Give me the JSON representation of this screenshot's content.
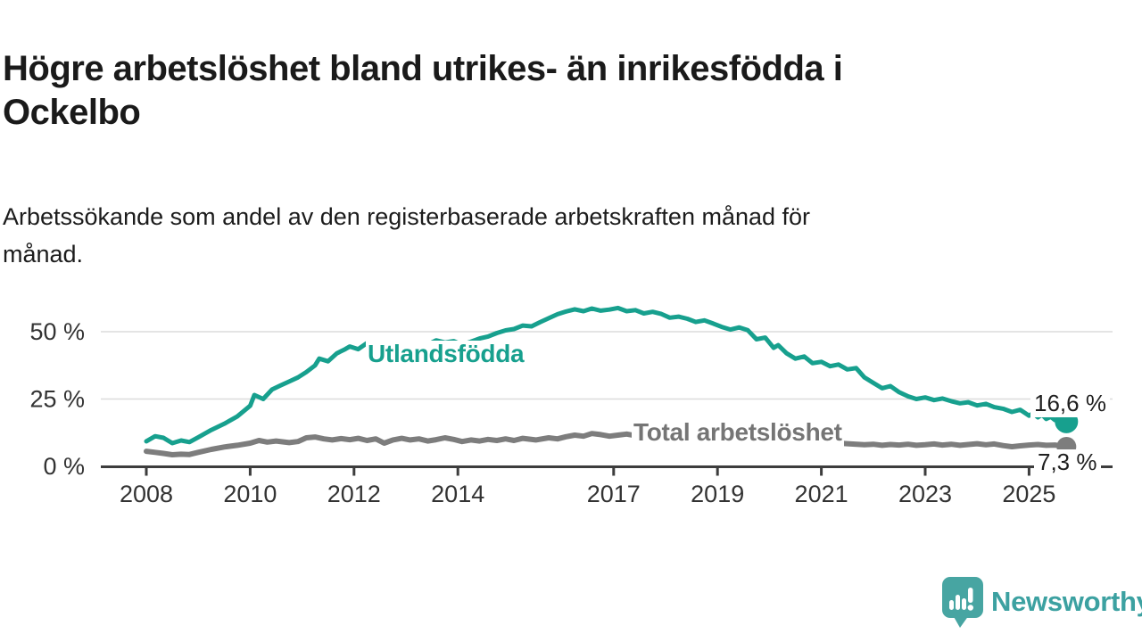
{
  "header": {
    "title": "Högre arbetslöshet bland utrikes- än inrikesfödda i Ockelbo",
    "title_lines": [
      "Högre arbetslöshet bland utrikes- än inrikesfödda i",
      "Ockelbo"
    ],
    "subtitle": "Arbetssökande som andel av den registerbaserade arbetskraften månad för månad.",
    "subtitle_lines": [
      "Arbetssökande som andel av den registerbaserade arbetskraften månad för",
      "månad."
    ]
  },
  "colors": {
    "foreign_line": "#17a08e",
    "total_line": "#7d7d7d",
    "total_label_text": "#757575",
    "grid": "#dcdcdc",
    "axis": "#3d3d3d",
    "tick_text": "#333333",
    "heading_text": "#1a1a1a",
    "logo_teal": "#47a5a2",
    "logo_text_teal": "#3ca1a1"
  },
  "chart_data": {
    "type": "line",
    "title": "Högre arbetslöshet bland utrikes- än inrikesfödda i Ockelbo",
    "subtitle": "Arbetssökande som andel av den registerbaserade arbetskraften månad för månad.",
    "xlabel": "",
    "ylabel": "%",
    "xlim": [
      2007.9,
      2026.2
    ],
    "ylim": [
      0,
      62
    ],
    "grid": "horizontal",
    "legend_position": "inline-labels",
    "y_ticks": [
      {
        "value": 0,
        "label": "0 %"
      },
      {
        "value": 25,
        "label": "25 %"
      },
      {
        "value": 50,
        "label": "50 %"
      }
    ],
    "x_ticks": [
      {
        "value": 2008,
        "label": "2008"
      },
      {
        "value": 2010,
        "label": "2010"
      },
      {
        "value": 2012,
        "label": "2012"
      },
      {
        "value": 2014,
        "label": "2014"
      },
      {
        "value": 2017,
        "label": "2017"
      },
      {
        "value": 2019,
        "label": "2019"
      },
      {
        "value": 2021,
        "label": "2021"
      },
      {
        "value": 2023,
        "label": "2023"
      },
      {
        "value": 2025,
        "label": "2025"
      }
    ],
    "series": [
      {
        "name": "Utlandsfödda",
        "color": "#17a08e",
        "stroke_width": 5,
        "end_dot_radius": 13,
        "end_value": 16.6,
        "end_label": "16,6 %",
        "points": [
          [
            2008.0,
            9.3
          ],
          [
            2008.17,
            11.2
          ],
          [
            2008.33,
            10.6
          ],
          [
            2008.5,
            8.6
          ],
          [
            2008.67,
            9.6
          ],
          [
            2008.83,
            9.0
          ],
          [
            2009.0,
            10.8
          ],
          [
            2009.25,
            13.5
          ],
          [
            2009.5,
            15.8
          ],
          [
            2009.75,
            18.5
          ],
          [
            2010.0,
            22.5
          ],
          [
            2010.08,
            26.5
          ],
          [
            2010.25,
            25.0
          ],
          [
            2010.42,
            28.5
          ],
          [
            2010.58,
            30.0
          ],
          [
            2010.75,
            31.5
          ],
          [
            2010.92,
            33.0
          ],
          [
            2011.08,
            35.0
          ],
          [
            2011.25,
            37.5
          ],
          [
            2011.33,
            40.0
          ],
          [
            2011.5,
            39.0
          ],
          [
            2011.67,
            42.0
          ],
          [
            2011.83,
            43.5
          ],
          [
            2011.92,
            44.5
          ],
          [
            2012.08,
            43.5
          ],
          [
            2012.25,
            45.8
          ],
          [
            2012.42,
            44.8
          ],
          [
            2012.58,
            42.8
          ],
          [
            2012.75,
            43.5
          ],
          [
            2012.92,
            44.3
          ],
          [
            2013.08,
            45.6
          ],
          [
            2013.25,
            44.6
          ],
          [
            2013.42,
            45.2
          ],
          [
            2013.58,
            46.8
          ],
          [
            2013.75,
            46.0
          ],
          [
            2013.92,
            46.5
          ],
          [
            2014.08,
            45.2
          ],
          [
            2014.25,
            46.3
          ],
          [
            2014.42,
            47.5
          ],
          [
            2014.58,
            48.2
          ],
          [
            2014.75,
            49.5
          ],
          [
            2014.92,
            50.5
          ],
          [
            2015.08,
            51.0
          ],
          [
            2015.25,
            52.3
          ],
          [
            2015.42,
            52.0
          ],
          [
            2015.58,
            53.5
          ],
          [
            2015.75,
            55.0
          ],
          [
            2015.92,
            56.5
          ],
          [
            2016.08,
            57.5
          ],
          [
            2016.25,
            58.3
          ],
          [
            2016.42,
            57.6
          ],
          [
            2016.58,
            58.6
          ],
          [
            2016.75,
            57.8
          ],
          [
            2016.92,
            58.2
          ],
          [
            2017.08,
            58.8
          ],
          [
            2017.25,
            57.6
          ],
          [
            2017.42,
            58.0
          ],
          [
            2017.58,
            56.8
          ],
          [
            2017.75,
            57.4
          ],
          [
            2017.92,
            56.6
          ],
          [
            2018.08,
            55.2
          ],
          [
            2018.25,
            55.6
          ],
          [
            2018.42,
            54.8
          ],
          [
            2018.58,
            53.6
          ],
          [
            2018.75,
            54.2
          ],
          [
            2018.92,
            53.0
          ],
          [
            2019.08,
            51.8
          ],
          [
            2019.25,
            50.8
          ],
          [
            2019.42,
            51.6
          ],
          [
            2019.58,
            50.6
          ],
          [
            2019.75,
            47.2
          ],
          [
            2019.92,
            47.8
          ],
          [
            2020.08,
            44.0
          ],
          [
            2020.17,
            45.0
          ],
          [
            2020.33,
            42.0
          ],
          [
            2020.5,
            40.0
          ],
          [
            2020.67,
            40.8
          ],
          [
            2020.83,
            38.3
          ],
          [
            2021.0,
            38.8
          ],
          [
            2021.17,
            37.2
          ],
          [
            2021.33,
            37.8
          ],
          [
            2021.5,
            36.0
          ],
          [
            2021.67,
            36.5
          ],
          [
            2021.83,
            33.0
          ],
          [
            2022.0,
            31.0
          ],
          [
            2022.17,
            29.0
          ],
          [
            2022.33,
            29.8
          ],
          [
            2022.5,
            27.5
          ],
          [
            2022.67,
            26.0
          ],
          [
            2022.83,
            25.0
          ],
          [
            2023.0,
            25.6
          ],
          [
            2023.17,
            24.6
          ],
          [
            2023.33,
            25.2
          ],
          [
            2023.5,
            24.2
          ],
          [
            2023.67,
            23.4
          ],
          [
            2023.83,
            23.8
          ],
          [
            2024.0,
            22.6
          ],
          [
            2024.17,
            23.2
          ],
          [
            2024.33,
            22.0
          ],
          [
            2024.5,
            21.4
          ],
          [
            2024.67,
            20.2
          ],
          [
            2024.83,
            21.0
          ],
          [
            2025.0,
            18.8
          ],
          [
            2025.08,
            19.8
          ],
          [
            2025.17,
            18.2
          ],
          [
            2025.25,
            19.2
          ],
          [
            2025.33,
            17.6
          ],
          [
            2025.42,
            18.4
          ],
          [
            2025.5,
            17.2
          ],
          [
            2025.58,
            17.8
          ],
          [
            2025.72,
            16.6
          ]
        ]
      },
      {
        "name": "Total arbetslöshet",
        "color": "#7d7d7d",
        "stroke_width": 6,
        "end_dot_radius": 11,
        "end_value": 7.3,
        "end_label": "7,3 %",
        "points": [
          [
            2008.0,
            5.6
          ],
          [
            2008.17,
            5.2
          ],
          [
            2008.33,
            4.8
          ],
          [
            2008.5,
            4.3
          ],
          [
            2008.67,
            4.5
          ],
          [
            2008.83,
            4.4
          ],
          [
            2009.0,
            5.2
          ],
          [
            2009.25,
            6.3
          ],
          [
            2009.5,
            7.2
          ],
          [
            2009.75,
            7.8
          ],
          [
            2010.0,
            8.6
          ],
          [
            2010.17,
            9.6
          ],
          [
            2010.33,
            9.0
          ],
          [
            2010.5,
            9.4
          ],
          [
            2010.75,
            8.8
          ],
          [
            2010.92,
            9.2
          ],
          [
            2011.08,
            10.6
          ],
          [
            2011.25,
            10.9
          ],
          [
            2011.42,
            10.2
          ],
          [
            2011.58,
            9.8
          ],
          [
            2011.75,
            10.3
          ],
          [
            2011.92,
            9.9
          ],
          [
            2012.08,
            10.4
          ],
          [
            2012.25,
            9.6
          ],
          [
            2012.42,
            10.2
          ],
          [
            2012.58,
            8.6
          ],
          [
            2012.75,
            9.8
          ],
          [
            2012.92,
            10.4
          ],
          [
            2013.08,
            9.8
          ],
          [
            2013.25,
            10.2
          ],
          [
            2013.42,
            9.4
          ],
          [
            2013.58,
            9.9
          ],
          [
            2013.75,
            10.6
          ],
          [
            2013.92,
            10.0
          ],
          [
            2014.08,
            9.2
          ],
          [
            2014.25,
            9.8
          ],
          [
            2014.42,
            9.4
          ],
          [
            2014.58,
            10.0
          ],
          [
            2014.75,
            9.6
          ],
          [
            2014.92,
            10.2
          ],
          [
            2015.08,
            9.6
          ],
          [
            2015.25,
            10.4
          ],
          [
            2015.5,
            9.8
          ],
          [
            2015.75,
            10.6
          ],
          [
            2015.92,
            10.2
          ],
          [
            2016.08,
            11.0
          ],
          [
            2016.25,
            11.6
          ],
          [
            2016.42,
            11.2
          ],
          [
            2016.58,
            12.2
          ],
          [
            2016.75,
            11.8
          ],
          [
            2016.92,
            11.2
          ],
          [
            2017.08,
            11.6
          ],
          [
            2017.25,
            12.0
          ],
          [
            2017.42,
            11.4
          ],
          [
            2017.58,
            11.8
          ],
          [
            2017.75,
            11.2
          ],
          [
            2018.0,
            10.8
          ],
          [
            2018.5,
            10.2
          ],
          [
            2019.0,
            9.8
          ],
          [
            2019.5,
            9.2
          ],
          [
            2020.0,
            10.2
          ],
          [
            2020.5,
            9.6
          ],
          [
            2021.0,
            9.0
          ],
          [
            2021.5,
            8.4
          ],
          [
            2021.83,
            8.0
          ],
          [
            2022.0,
            8.2
          ],
          [
            2022.17,
            7.8
          ],
          [
            2022.33,
            8.1
          ],
          [
            2022.5,
            7.9
          ],
          [
            2022.67,
            8.2
          ],
          [
            2022.83,
            7.8
          ],
          [
            2023.0,
            8.0
          ],
          [
            2023.17,
            8.3
          ],
          [
            2023.33,
            7.9
          ],
          [
            2023.5,
            8.2
          ],
          [
            2023.67,
            7.8
          ],
          [
            2023.83,
            8.1
          ],
          [
            2024.0,
            8.4
          ],
          [
            2024.17,
            8.0
          ],
          [
            2024.33,
            8.3
          ],
          [
            2024.5,
            7.7
          ],
          [
            2024.67,
            7.3
          ],
          [
            2024.83,
            7.6
          ],
          [
            2025.0,
            7.9
          ],
          [
            2025.17,
            8.1
          ],
          [
            2025.33,
            7.8
          ],
          [
            2025.5,
            7.9
          ],
          [
            2025.72,
            7.3
          ]
        ]
      }
    ]
  },
  "footer": {
    "brand": "Newsworthy"
  }
}
